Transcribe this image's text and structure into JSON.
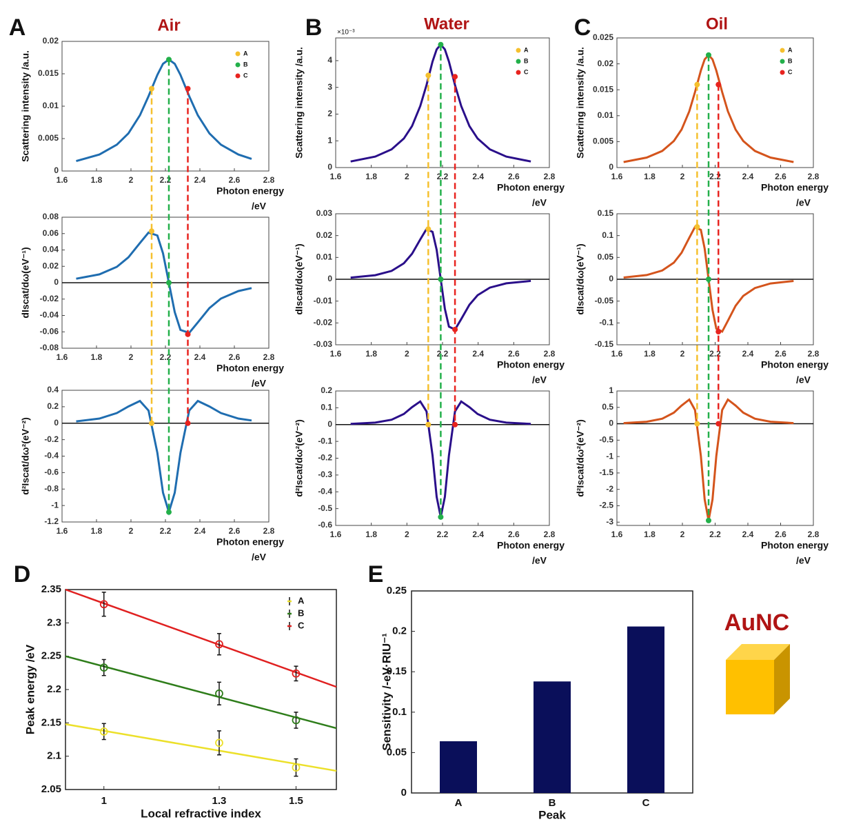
{
  "chart_data": [
    {
      "type": "line",
      "label": "A",
      "title": "Air",
      "color": "#1f6db0",
      "xlim": [
        1.6,
        2.8
      ],
      "xticks": [
        1.6,
        1.8,
        2,
        2.2,
        2.4,
        2.6,
        2.8
      ],
      "xlabel": "Photon energy",
      "xunit": "/eV",
      "x": [
        1.682,
        1.817,
        1.918,
        1.985,
        2.052,
        2.102,
        2.153,
        2.186,
        2.22,
        2.254,
        2.287,
        2.338,
        2.388,
        2.455,
        2.522,
        2.623,
        2.7
      ],
      "subplots": [
        {
          "ylabel": "Scattering intensity /a.u.",
          "ylim": [
            0,
            0.02
          ],
          "yticks": [
            0,
            0.005,
            0.01,
            0.015,
            0.02
          ],
          "values": [
            0.00153,
            0.00254,
            0.00406,
            0.00581,
            0.0086,
            0.01154,
            0.01483,
            0.01654,
            0.0172,
            0.01654,
            0.01483,
            0.01154,
            0.0086,
            0.00581,
            0.00406,
            0.00254,
            0.00187
          ]
        },
        {
          "ylabel": "dIscat/dω(eV⁻¹)",
          "ylim": [
            -0.08,
            0.08
          ],
          "yticks": [
            -0.08,
            -0.06,
            -0.04,
            -0.02,
            0,
            0.02,
            0.04,
            0.06,
            0.08
          ],
          "zero_line": true,
          "values": [
            0.0049,
            0.0102,
            0.0194,
            0.031,
            0.0485,
            0.0612,
            0.0577,
            0.0359,
            0,
            -0.0359,
            -0.0577,
            -0.0612,
            -0.0485,
            -0.031,
            -0.0194,
            -0.0102,
            -0.0066
          ]
        },
        {
          "ylabel": "d²Iscat/dω²(eV⁻²)",
          "ylim": [
            -1.2,
            0.4
          ],
          "yticks": [
            -1.2,
            -1,
            -0.8,
            -0.6,
            -0.4,
            -0.2,
            0,
            0.2,
            0.4
          ],
          "zero_line": true,
          "values": [
            0.0226,
            0.0569,
            0.1236,
            0.2032,
            0.27,
            0.1535,
            -0.3598,
            -0.8449,
            -1.08,
            -0.8449,
            -0.3598,
            0.1535,
            0.27,
            0.2032,
            0.1236,
            0.0569,
            0.0329
          ]
        }
      ],
      "markers": [
        {
          "name": "A",
          "color": "#f5c02e",
          "x": 2.12,
          "values": [
            0.0127,
            0.063,
            0
          ]
        },
        {
          "name": "B",
          "color": "#23b04a",
          "x": 2.22,
          "values": [
            0.0172,
            0,
            -1.08
          ]
        },
        {
          "name": "C",
          "color": "#e8231f",
          "x": 2.33,
          "values": [
            0.0127,
            -0.063,
            0
          ]
        }
      ]
    },
    {
      "type": "line",
      "label": "B",
      "title": "Water",
      "color": "#2a0f8a",
      "xlim": [
        1.6,
        2.8
      ],
      "xticks": [
        1.6,
        1.8,
        2,
        2.2,
        2.4,
        2.6,
        2.8
      ],
      "xlabel": "Photon energy",
      "xunit": "/eV",
      "x": [
        1.684,
        1.822,
        1.914,
        1.983,
        2.029,
        2.075,
        2.11,
        2.144,
        2.167,
        2.19,
        2.213,
        2.236,
        2.27,
        2.305,
        2.351,
        2.397,
        2.466,
        2.558,
        2.696
      ],
      "subplots": [
        {
          "ylabel": "Scattering intensity /a.u.",
          "ylim": [
            0,
            4.85
          ],
          "yticks": [
            0,
            1,
            2,
            3,
            4
          ],
          "y_offset_label": "×10⁻³",
          "values": [
            0.226,
            0.409,
            0.68,
            1.085,
            1.554,
            2.3,
            3.087,
            3.966,
            4.423,
            4.6,
            4.423,
            3.966,
            3.087,
            2.3,
            1.554,
            1.085,
            0.68,
            0.409,
            0.226
          ]
        },
        {
          "ylabel": "dIscat/dω(eV⁻¹)",
          "ylim": [
            -0.03,
            0.03
          ],
          "yticks": [
            -0.03,
            -0.02,
            -0.01,
            0,
            0.01,
            0.02,
            0.03
          ],
          "zero_line": true,
          "values": [
            0.00077,
            0.00185,
            0.00383,
            0.00731,
            0.01167,
            0.01825,
            0.02302,
            0.0217,
            0.0135,
            0,
            -0.0135,
            -0.0217,
            -0.02302,
            -0.01825,
            -0.01167,
            -0.00731,
            -0.00383,
            -0.00185,
            -0.00077
          ]
        },
        {
          "ylabel": "d²Iscat/dω²(eV⁻²)",
          "ylim": [
            -0.6,
            0.2
          ],
          "yticks": [
            -0.6,
            -0.5,
            -0.4,
            -0.3,
            -0.2,
            -0.1,
            0,
            0.1,
            0.2
          ],
          "zero_line": true,
          "values": [
            0.0037,
            0.0115,
            0.029,
            0.0629,
            0.1035,
            0.1375,
            0.0782,
            -0.1832,
            -0.4303,
            -0.55,
            -0.4303,
            -0.1832,
            0.0782,
            0.1375,
            0.1035,
            0.0629,
            0.029,
            0.0115,
            0.0037
          ]
        }
      ],
      "markers": [
        {
          "name": "A",
          "color": "#f5c02e",
          "x": 2.12,
          "values": [
            3.45,
            0.023,
            0
          ]
        },
        {
          "name": "B",
          "color": "#23b04a",
          "x": 2.19,
          "values": [
            4.6,
            0,
            -0.55
          ]
        },
        {
          "name": "C",
          "color": "#e8231f",
          "x": 2.27,
          "values": [
            3.4,
            -0.023,
            0
          ]
        }
      ]
    },
    {
      "type": "line",
      "label": "C",
      "title": "Oil",
      "color": "#d4541c",
      "xlim": [
        1.6,
        2.8
      ],
      "xticks": [
        1.6,
        1.8,
        2,
        2.2,
        2.4,
        2.6,
        2.8
      ],
      "xlabel": "Photon energy",
      "xunit": "/eV",
      "x": [
        1.641,
        1.782,
        1.877,
        1.948,
        1.995,
        2.042,
        2.077,
        2.113,
        2.136,
        2.16,
        2.184,
        2.207,
        2.243,
        2.278,
        2.325,
        2.372,
        2.443,
        2.538,
        2.679
      ],
      "subplots": [
        {
          "ylabel": "Scattering intensity /a.u.",
          "ylim": [
            0,
            0.025
          ],
          "yticks": [
            0,
            0.005,
            0.01,
            0.015,
            0.02,
            0.025
          ],
          "values": [
            0.00107,
            0.00193,
            0.00321,
            0.00512,
            0.00733,
            0.01085,
            0.01456,
            0.01871,
            0.02087,
            0.0217,
            0.02087,
            0.01871,
            0.01456,
            0.01085,
            0.00733,
            0.00512,
            0.00321,
            0.00193,
            0.00107
          ]
        },
        {
          "ylabel": "dIscat/dω(eV⁻¹)",
          "ylim": [
            -0.15,
            0.15
          ],
          "yticks": [
            -0.15,
            -0.1,
            -0.05,
            0,
            0.05,
            0.1,
            0.15
          ],
          "zero_line": true,
          "values": [
            0.004,
            0.0096,
            0.02,
            0.038,
            0.0607,
            0.095,
            0.1198,
            0.113,
            0.0703,
            0,
            -0.0703,
            -0.113,
            -0.1198,
            -0.095,
            -0.0607,
            -0.038,
            -0.02,
            -0.0096,
            -0.004
          ]
        },
        {
          "ylabel": "d²Iscat/dω²(eV⁻²)",
          "ylim": [
            -3.1,
            1
          ],
          "yticks": [
            -3,
            -2.5,
            -2,
            -1.5,
            -1,
            -0.5,
            0,
            0.5,
            1
          ],
          "zero_line": true,
          "values": [
            0.0199,
            0.0618,
            0.1555,
            0.3375,
            0.555,
            0.7375,
            0.4192,
            -0.9828,
            -2.3078,
            -2.95,
            -2.3078,
            -0.9828,
            0.4192,
            0.7375,
            0.555,
            0.3375,
            0.1555,
            0.0618,
            0.0199
          ]
        }
      ],
      "markers": [
        {
          "name": "A",
          "color": "#f5c02e",
          "x": 2.09,
          "values": [
            0.016,
            0.12,
            0
          ]
        },
        {
          "name": "B",
          "color": "#23b04a",
          "x": 2.16,
          "values": [
            0.0217,
            0,
            -2.95
          ]
        },
        {
          "name": "C",
          "color": "#e8231f",
          "x": 2.22,
          "values": [
            0.016,
            -0.12,
            0
          ]
        }
      ]
    },
    {
      "type": "errorbar",
      "label": "D",
      "xlabel": "Local refractive index",
      "ylabel": "Peak energy /eV",
      "x": [
        1,
        1.3,
        1.5
      ],
      "xlim": [
        0.9,
        1.605
      ],
      "xticks": [
        1,
        1.3,
        1.5
      ],
      "ylim": [
        2.05,
        2.35
      ],
      "yticks": [
        2.05,
        2.1,
        2.15,
        2.2,
        2.25,
        2.3,
        2.35
      ],
      "fit_x": [
        0.9,
        1.605
      ],
      "series": [
        {
          "name": "A",
          "color": "#ece02a",
          "values": [
            2.137,
            2.12,
            2.083
          ],
          "errors": [
            0.012,
            0.018,
            0.013
          ],
          "fit": [
            2.148,
            2.078
          ]
        },
        {
          "name": "B",
          "color": "#2e7d1a",
          "values": [
            2.233,
            2.194,
            2.154
          ],
          "errors": [
            0.012,
            0.017,
            0.012
          ],
          "fit": [
            2.25,
            2.142
          ]
        },
        {
          "name": "C",
          "color": "#e02020",
          "values": [
            2.328,
            2.268,
            2.224
          ],
          "errors": [
            0.018,
            0.016,
            0.011
          ],
          "fit": [
            2.35,
            2.204
          ]
        }
      ]
    },
    {
      "type": "bar",
      "label": "E",
      "xlabel": "Peak",
      "ylabel": "Sensitivity /-eV·RIU⁻¹",
      "categories": [
        "A",
        "B",
        "C"
      ],
      "values": [
        0.064,
        0.138,
        0.206
      ],
      "color": "#0a0f5a",
      "ylim": [
        0,
        0.25
      ],
      "yticks": [
        0,
        0.05,
        0.1,
        0.15,
        0.2,
        0.25
      ],
      "annotation": "AuNC"
    }
  ]
}
